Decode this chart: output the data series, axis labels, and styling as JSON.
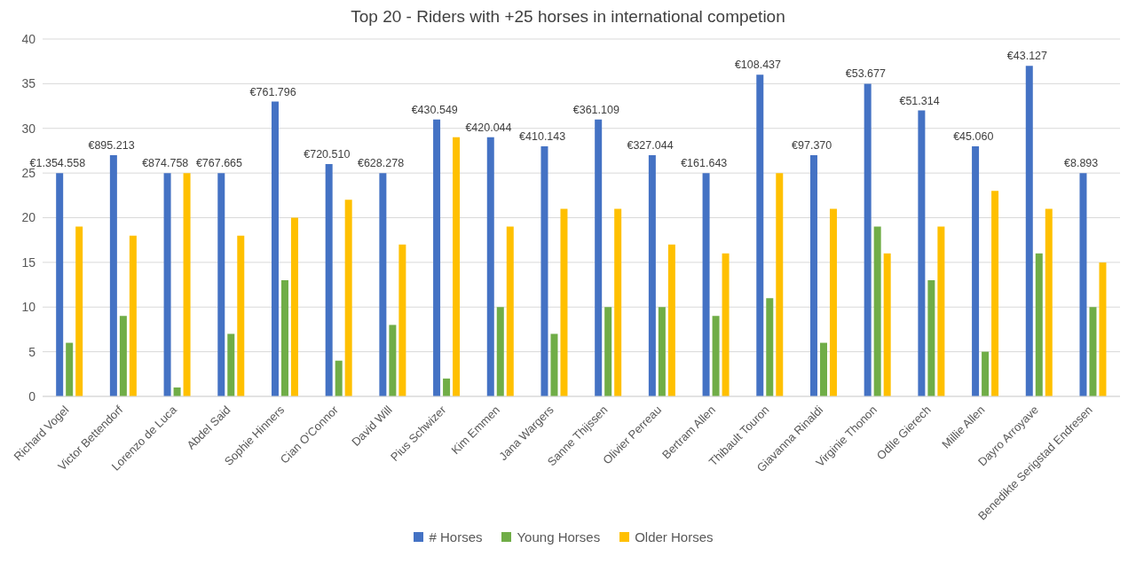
{
  "chart_data": {
    "type": "bar",
    "title": "Top 20 - Riders with +25 horses in international competion",
    "categories": [
      "Richard Vogel",
      "Victor Bettendorf",
      "Lorenzo de Luca",
      "Abdel Said",
      "Sophie Hinners",
      "Cian O'Connor",
      "David Will",
      "Pius Schwizer",
      "Kim Emmen",
      "Jana Wargers",
      "Sanne Thijssen",
      "Olivier Perreau",
      "Bertram Allen",
      "Thibault Touron",
      "Giavanna Rinaldi",
      "Virginie Thonon",
      "Odile Gierech",
      "Millie Allen",
      "Dayro Arroyave",
      "Benedikte Serigstad Endresen"
    ],
    "series": [
      {
        "name": "# Horses",
        "color": "#4472c4",
        "values": [
          25,
          27,
          25,
          25,
          33,
          26,
          25,
          31,
          29,
          28,
          31,
          27,
          25,
          36,
          27,
          35,
          32,
          28,
          37,
          25
        ]
      },
      {
        "name": "Young Horses",
        "color": "#70ad47",
        "values": [
          6,
          9,
          1,
          7,
          13,
          4,
          8,
          2,
          10,
          7,
          10,
          10,
          9,
          11,
          6,
          19,
          13,
          5,
          16,
          10
        ]
      },
      {
        "name": "Older Horses",
        "color": "#ffc000",
        "values": [
          19,
          18,
          25,
          18,
          20,
          22,
          17,
          29,
          19,
          21,
          21,
          17,
          16,
          25,
          21,
          16,
          19,
          23,
          21,
          15
        ]
      }
    ],
    "annotations": [
      {
        "text": "€1.354.558",
        "x": "Richard Vogel",
        "y": 25
      },
      {
        "text": "€895.213",
        "x": "Victor Bettendorf",
        "y": 27
      },
      {
        "text": "€874.758",
        "x": "Lorenzo de Luca",
        "y": 25
      },
      {
        "text": "€767.665",
        "x": "Abdel Said",
        "y": 25
      },
      {
        "text": "€761.796",
        "x": "Sophie Hinners",
        "y": 33
      },
      {
        "text": "€720.510",
        "x": "Cian O'Connor",
        "y": 26
      },
      {
        "text": "€628.278",
        "x": "David Will",
        "y": 25
      },
      {
        "text": "€430.549",
        "x": "Pius Schwizer",
        "y": 31
      },
      {
        "text": "€420.044",
        "x": "Kim Emmen",
        "y": 29
      },
      {
        "text": "€410.143",
        "x": "Jana Wargers",
        "y": 28
      },
      {
        "text": "€361.109",
        "x": "Sanne Thijssen",
        "y": 31
      },
      {
        "text": "€327.044",
        "x": "Olivier Perreau",
        "y": 27
      },
      {
        "text": "€161.643",
        "x": "Bertram Allen",
        "y": 25
      },
      {
        "text": "€108.437",
        "x": "Thibault Touron",
        "y": 36
      },
      {
        "text": "€97.370",
        "x": "Giavanna Rinaldi",
        "y": 27
      },
      {
        "text": "€53.677",
        "x": "Virginie Thonon",
        "y": 35
      },
      {
        "text": "€51.314",
        "x": "Odile Gierech",
        "y": 32
      },
      {
        "text": "€45.060",
        "x": "Millie Allen",
        "y": 28
      },
      {
        "text": "€43.127",
        "x": "Dayro Arroyave",
        "y": 37
      },
      {
        "text": "€8.893",
        "x": "Benedikte Serigstad Endresen",
        "y": 25
      }
    ],
    "ylim": [
      0,
      40
    ],
    "yticks": [
      0,
      5,
      10,
      15,
      20,
      25,
      30,
      35,
      40
    ],
    "grid": "y",
    "legend": "bottom"
  }
}
